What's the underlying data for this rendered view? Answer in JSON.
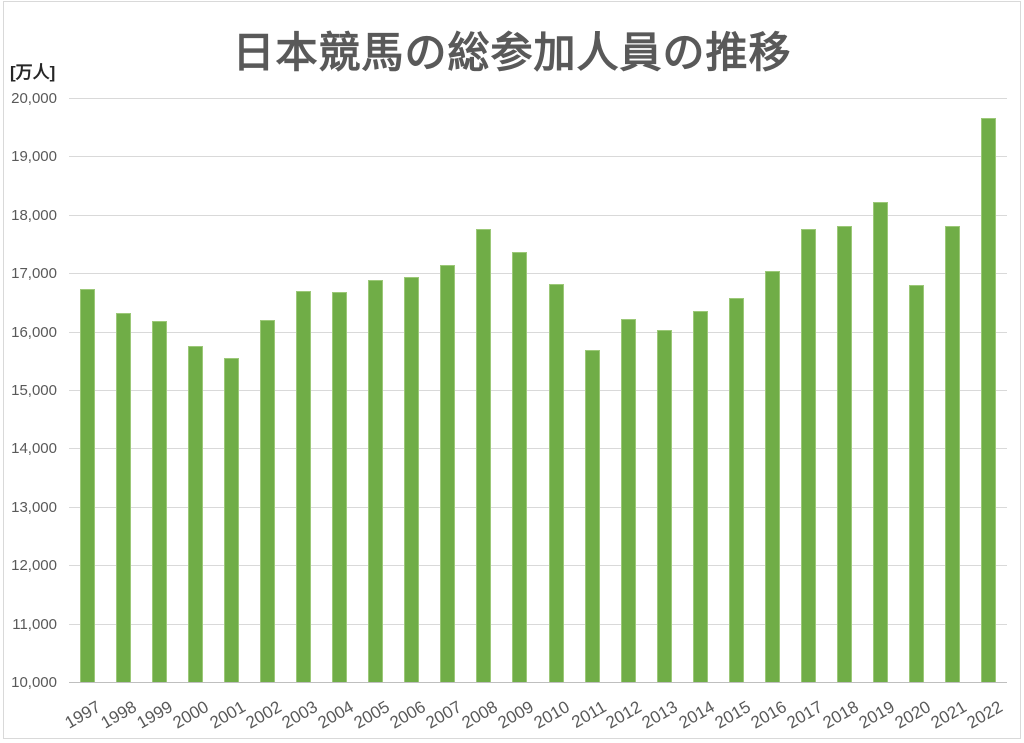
{
  "window": {
    "background": "#ffffff",
    "border_color": "#d9d9d9"
  },
  "chart": {
    "title": "日本競馬の総参加人員の推移",
    "unit_label": "[万人]"
  },
  "chart_data": {
    "type": "bar",
    "title": "日本競馬の総参加人員の推移",
    "unit": "万人",
    "xlabel": "",
    "ylabel": "万人",
    "categories": [
      "1997",
      "1998",
      "1999",
      "2000",
      "2001",
      "2002",
      "2003",
      "2004",
      "2005",
      "2006",
      "2007",
      "2008",
      "2009",
      "2010",
      "2011",
      "2012",
      "2013",
      "2014",
      "2015",
      "2016",
      "2017",
      "2018",
      "2019",
      "2020",
      "2021",
      "2022"
    ],
    "values": [
      16730,
      16310,
      16180,
      15760,
      15540,
      16200,
      16690,
      16680,
      16890,
      16930,
      17140,
      17760,
      17360,
      16820,
      15690,
      16220,
      16020,
      16360,
      16570,
      17030,
      17760,
      17810,
      18220,
      16790,
      17800,
      19660
    ],
    "ylim": [
      10000,
      20000
    ],
    "ytick_step": 1000,
    "grid": true,
    "legend": "none",
    "bar_color": "#70AD47",
    "bar_border_color": "#9cc878",
    "gridline_color": "#d9d9d9",
    "axis_line_color": "#bfbfbf",
    "label_color": "#595959",
    "title_color": "#595959"
  }
}
